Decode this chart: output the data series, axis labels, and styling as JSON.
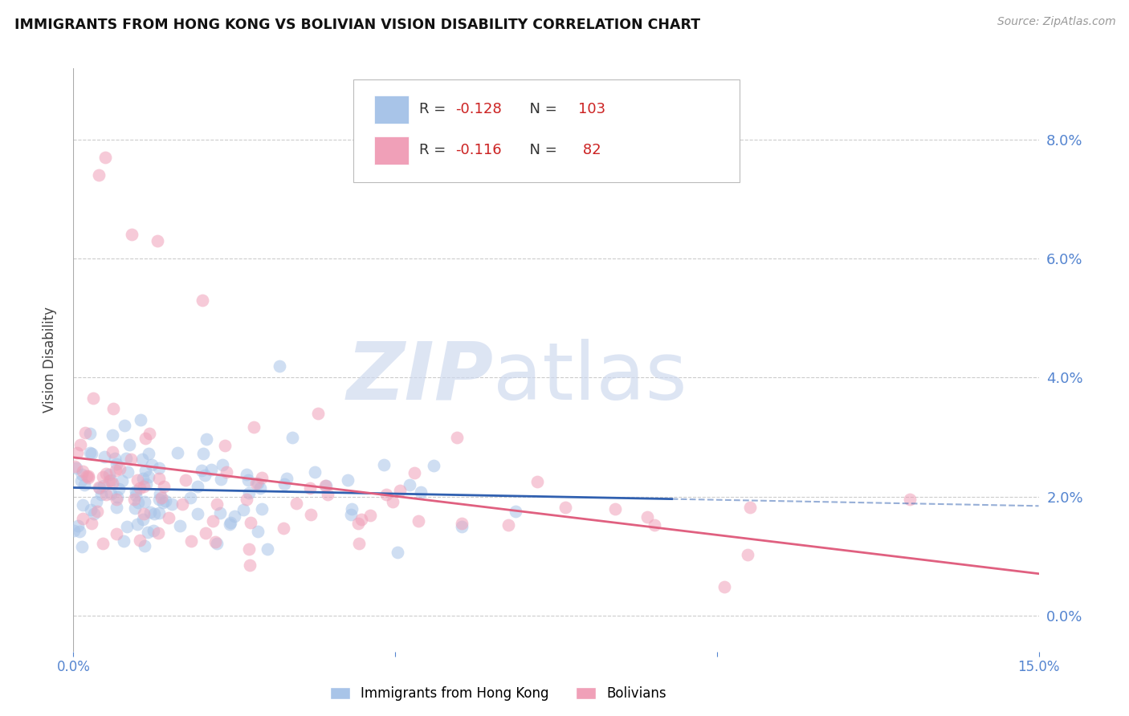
{
  "title": "IMMIGRANTS FROM HONG KONG VS BOLIVIAN VISION DISABILITY CORRELATION CHART",
  "source": "Source: ZipAtlas.com",
  "ylabel": "Vision Disability",
  "r1": "-0.128",
  "n1": "103",
  "r2": "-0.116",
  "n2": "82",
  "legend_label_1": "Immigrants from Hong Kong",
  "legend_label_2": "Bolivians",
  "color_blue": "#a8c4e8",
  "color_pink": "#f0a0b8",
  "line_blue": "#3060b0",
  "line_pink": "#e06080",
  "axis_color": "#5585d0",
  "xlim": [
    0.0,
    0.15
  ],
  "ylim": [
    -0.006,
    0.092
  ],
  "ytick_vals": [
    0.0,
    0.02,
    0.04,
    0.06,
    0.08
  ],
  "ytick_labels": [
    "0.0%",
    "2.0%",
    "4.0%",
    "6.0%",
    "8.0%"
  ],
  "xtick_vals": [
    0.0,
    0.05,
    0.1,
    0.15
  ],
  "xtick_labels": [
    "0.0%",
    "",
    "",
    "15.0%"
  ],
  "watermark_zip": "ZIP",
  "watermark_atlas": "atlas",
  "grid_color": "#cccccc"
}
